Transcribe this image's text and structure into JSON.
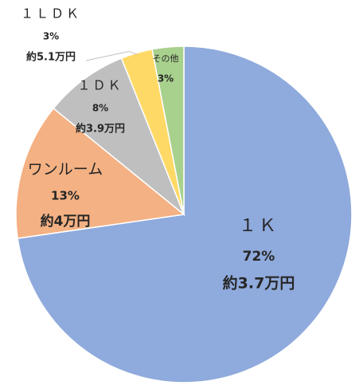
{
  "chart_data": {
    "type": "pie",
    "title": "",
    "start_angle_deg": 0,
    "direction": "clockwise",
    "slices": [
      {
        "name": "１Ｋ",
        "value": 72,
        "percent_label": "72%",
        "price_label": "約3.7万円",
        "color": "#8faadc"
      },
      {
        "name": "ワンルーム",
        "value": 13,
        "percent_label": "13%",
        "price_label": "約4万円",
        "color": "#f4b183"
      },
      {
        "name": "１ＤＫ",
        "value": 8,
        "percent_label": "8%",
        "price_label": "約3.9万円",
        "color": "#bfbfbf"
      },
      {
        "name": "１ＬＤＫ",
        "value": 3,
        "percent_label": "3%",
        "price_label": "約5.1万円",
        "color": "#ffd966"
      },
      {
        "name": "その他",
        "value": 3,
        "percent_label": "3%",
        "price_label": "",
        "color": "#a9d18e"
      }
    ],
    "legend": "none",
    "label_text_color": "#262626",
    "slice_border_color": "#ffffff"
  }
}
